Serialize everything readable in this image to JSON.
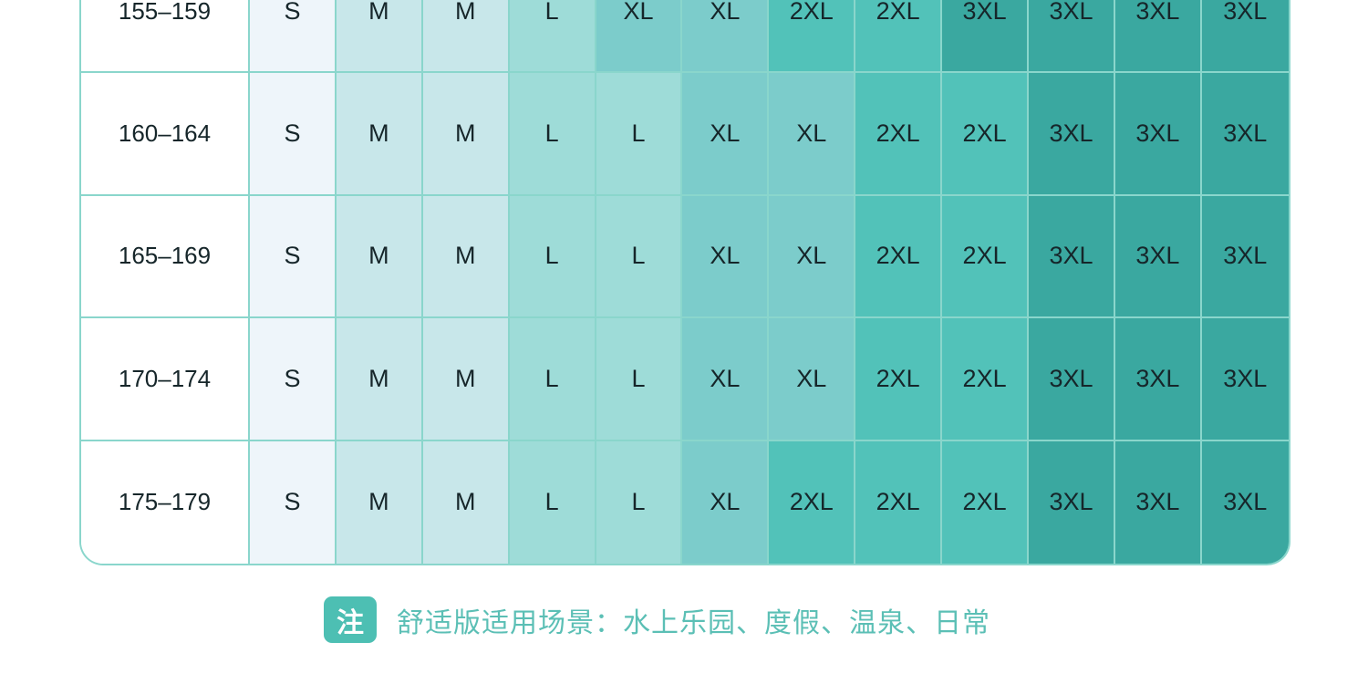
{
  "size_colors": {
    "S": "#eef5fa",
    "M": "#c8e7ea",
    "L": "#9edcd8",
    "XL": "#7ccccb",
    "2XL": "#52c2b9",
    "3XL": "#3aa8a0"
  },
  "rows": [
    {
      "height": "155–159",
      "sizes": [
        "S",
        "M",
        "M",
        "L",
        "XL",
        "XL",
        "2XL",
        "2XL",
        "3XL",
        "3XL",
        "3XL",
        "3XL"
      ]
    },
    {
      "height": "160–164",
      "sizes": [
        "S",
        "M",
        "M",
        "L",
        "L",
        "XL",
        "XL",
        "2XL",
        "2XL",
        "3XL",
        "3XL",
        "3XL"
      ]
    },
    {
      "height": "165–169",
      "sizes": [
        "S",
        "M",
        "M",
        "L",
        "L",
        "XL",
        "XL",
        "2XL",
        "2XL",
        "3XL",
        "3XL",
        "3XL"
      ]
    },
    {
      "height": "170–174",
      "sizes": [
        "S",
        "M",
        "M",
        "L",
        "L",
        "XL",
        "XL",
        "2XL",
        "2XL",
        "3XL",
        "3XL",
        "3XL"
      ]
    },
    {
      "height": "175–179",
      "sizes": [
        "S",
        "M",
        "M",
        "L",
        "L",
        "XL",
        "2XL",
        "2XL",
        "2XL",
        "3XL",
        "3XL",
        "3XL"
      ]
    }
  ],
  "note": {
    "badge": "注",
    "text": "舒适版适用场景：水上乐园、度假、温泉、日常"
  }
}
